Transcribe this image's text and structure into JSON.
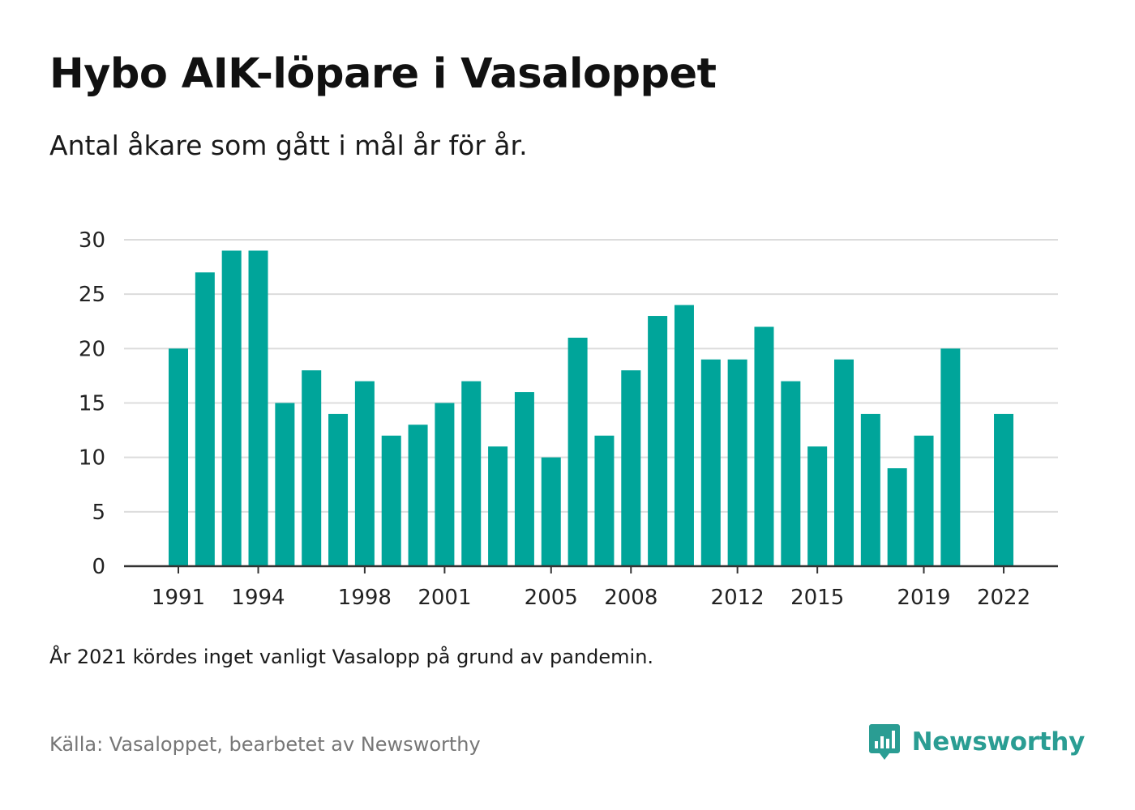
{
  "title": "Hybo AIK-löpare i Vasaloppet",
  "subtitle": "Antal åkare som gått i mål år för år.",
  "note": "År 2021 kördes inget vanligt Vasalopp på grund av pandemin.",
  "source": "Källa: Vasaloppet, bearbetet av Newsworthy",
  "brand": {
    "name": "Newsworthy",
    "icon": "newsworthy-logo-icon",
    "color": "#2a9d93"
  },
  "colors": {
    "bar": "#00a59a",
    "grid": "#dcdcdc",
    "axis": "#333333"
  },
  "chart_data": {
    "type": "bar",
    "categories": [
      1991,
      1992,
      1993,
      1994,
      1995,
      1996,
      1997,
      1998,
      1999,
      2000,
      2001,
      2002,
      2003,
      2004,
      2005,
      2006,
      2007,
      2008,
      2009,
      2010,
      2011,
      2012,
      2013,
      2014,
      2015,
      2016,
      2017,
      2018,
      2019,
      2020,
      2021,
      2022
    ],
    "values": [
      20,
      27,
      29,
      29,
      15,
      18,
      14,
      17,
      12,
      13,
      15,
      17,
      11,
      16,
      10,
      21,
      12,
      18,
      23,
      24,
      19,
      19,
      22,
      17,
      11,
      19,
      14,
      9,
      12,
      20,
      null,
      14
    ],
    "x_tick_labels": [
      "1991",
      "1994",
      "1998",
      "2001",
      "2005",
      "2008",
      "2012",
      "2015",
      "2019",
      "2022"
    ],
    "y_ticks": [
      0,
      5,
      10,
      15,
      20,
      25,
      30
    ],
    "ylim": [
      0,
      30
    ],
    "grid": true,
    "legend": "none",
    "xlabel": "",
    "ylabel": ""
  }
}
